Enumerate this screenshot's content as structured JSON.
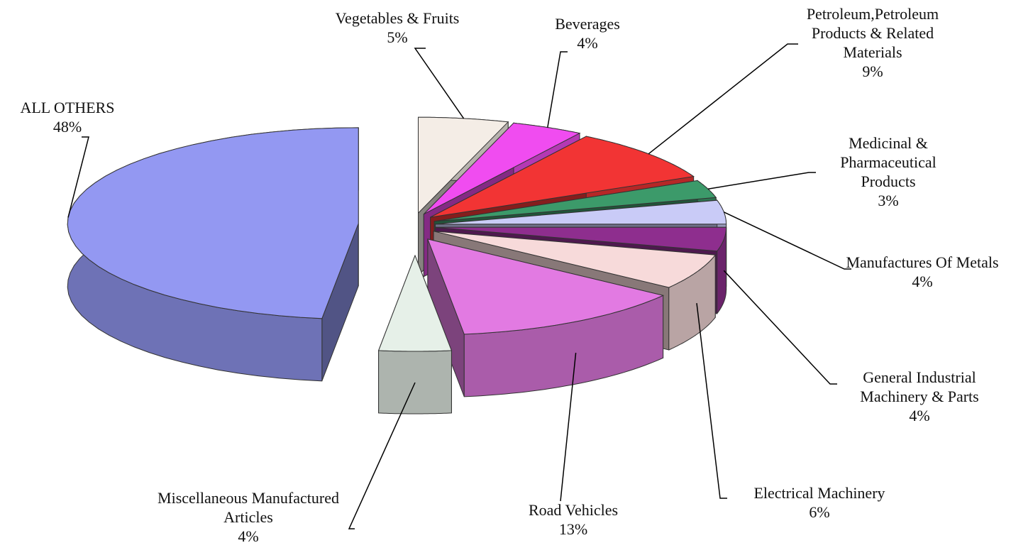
{
  "chart_data": {
    "type": "pie",
    "categories": [
      "Vegetables & Fruits",
      "Beverages",
      "Petroleum,Petroleum Products & Related Materials",
      "Medicinal & Pharmaceutical Products",
      "Manufactures Of Metals",
      "General Industrial Machinery & Parts",
      "Electrical Machinery",
      "Road Vehicles",
      "Miscellaneous Manufactured Articles",
      "ALL OTHERS"
    ],
    "values": [
      5,
      4,
      9,
      3,
      4,
      4,
      6,
      13,
      4,
      48
    ],
    "value_labels": [
      "5%",
      "4%",
      "9%",
      "3%",
      "4%",
      "4%",
      "6%",
      "13%",
      "4%",
      "48%"
    ],
    "colors": [
      "#f4ede6",
      "#f04cf0",
      "#f23434",
      "#3c9a6a",
      "#c9cbf7",
      "#8e2e8e",
      "#f7dada",
      "#e27ae2",
      "#e6f0e8",
      "#9398f2"
    ]
  }
}
